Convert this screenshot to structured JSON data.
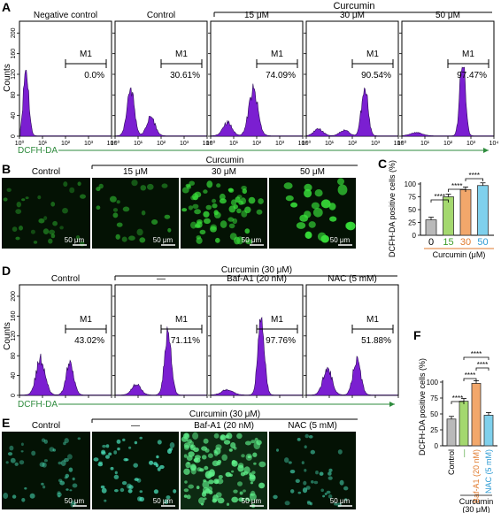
{
  "colors": {
    "histogram_fill": "#7b1fd1",
    "histogram_stroke": "#2a0a55",
    "fluor_green": "#38e03a",
    "fluor_cyan": "#4ff0c8",
    "dcfh_arrow": "#2e8b3d",
    "bar_0": "#b9b9b9",
    "bar_15": "#a4d86f",
    "bar_30": "#f2a76b",
    "bar_50": "#7fd0ec",
    "label_15": "#3f9e2a",
    "label_30": "#e07a2c",
    "label_50": "#2d9bd3",
    "label_baf": "#e07a2c",
    "label_nac": "#2d9bd3"
  },
  "panelA": {
    "letter": "A",
    "group_label": "Curcumin",
    "y_axis_label": "Counts",
    "y_ticks": [
      "0",
      "40",
      "80",
      "120",
      "160",
      "200"
    ],
    "x_ticks": [
      "10⁰",
      "10¹",
      "10²",
      "10³",
      "10⁴"
    ],
    "x_axis_label": "DCFH-DA",
    "gate_label": "M1",
    "plots": [
      {
        "title": "Negative control",
        "percent": "0.0%"
      },
      {
        "title": "Control",
        "percent": "30.61%"
      },
      {
        "title": "15 μM",
        "percent": "74.09%"
      },
      {
        "title": "30 μM",
        "percent": "90.54%"
      },
      {
        "title": "50 μM",
        "percent": "97.47%"
      }
    ]
  },
  "panelB": {
    "letter": "B",
    "group_label": "Curcumin",
    "images": [
      {
        "title": "Control",
        "scale": "50 μm"
      },
      {
        "title": "15 μM",
        "scale": "50 μm"
      },
      {
        "title": "30 μM",
        "scale": "50 μm"
      },
      {
        "title": "50 μM",
        "scale": "50 μm"
      }
    ]
  },
  "panelC": {
    "letter": "C",
    "significance": "****"
  },
  "panelD": {
    "letter": "D",
    "group_label": "Curcumin (30 μM)",
    "y_axis_label": "Counts",
    "y_ticks": [
      "0",
      "40",
      "80",
      "120",
      "160",
      "200"
    ],
    "x_axis_label": "DCFH-DA",
    "gate_label": "M1",
    "plots": [
      {
        "title": "Control",
        "percent": "43.02%"
      },
      {
        "title": "—",
        "percent": "71.11%"
      },
      {
        "title": "Baf-A1 (20 nM)",
        "percent": "97.76%"
      },
      {
        "title": "NAC (5 mM)",
        "percent": "51.88%"
      }
    ]
  },
  "panelE": {
    "letter": "E",
    "group_label": "Curcumin (30 μM)",
    "images": [
      {
        "title": "Control",
        "scale": "50 μm"
      },
      {
        "title": "—",
        "scale": "50 μm"
      },
      {
        "title": "Baf-A1 (20 nM)",
        "scale": "50 μm"
      },
      {
        "title": "NAC (5 mM)",
        "scale": "50 μm"
      }
    ]
  },
  "panelF": {
    "letter": "F",
    "significance": "****",
    "group_label": "Curcumin",
    "group_sublabel": "(30 μM)"
  },
  "chart_data": [
    {
      "panel": "C",
      "type": "bar",
      "categories": [
        "0",
        "15",
        "30",
        "50"
      ],
      "values": [
        30,
        75,
        89,
        97
      ],
      "ylabel": "DCFH-DA positive cells (%)",
      "xlabel": "Curcumin (μM)",
      "ylim": [
        0,
        100
      ],
      "yticks": [
        "0",
        "25",
        "50",
        "75",
        "100"
      ],
      "comparisons": [
        [
          "0",
          "15",
          "****"
        ],
        [
          "15",
          "30",
          "****"
        ],
        [
          "30",
          "50",
          "****"
        ]
      ]
    },
    {
      "panel": "F",
      "type": "bar",
      "categories": [
        "Control",
        "—",
        "Baf-A1 (20 nM)",
        "NAC (5 mM)"
      ],
      "values": [
        42,
        70,
        98,
        48
      ],
      "ylabel": "DCFH-DA positive cells (%)",
      "ylim": [
        0,
        100
      ],
      "yticks": [
        "0",
        "25",
        "50",
        "75",
        "100"
      ],
      "comparisons": [
        [
          "Control",
          "—",
          "****"
        ],
        [
          "—",
          "Baf-A1 (20 nM)",
          "****"
        ],
        [
          "Baf-A1 (20 nM)",
          "NAC (5 mM)",
          "****"
        ],
        [
          "—",
          "NAC (5 mM)",
          "****"
        ]
      ]
    }
  ]
}
